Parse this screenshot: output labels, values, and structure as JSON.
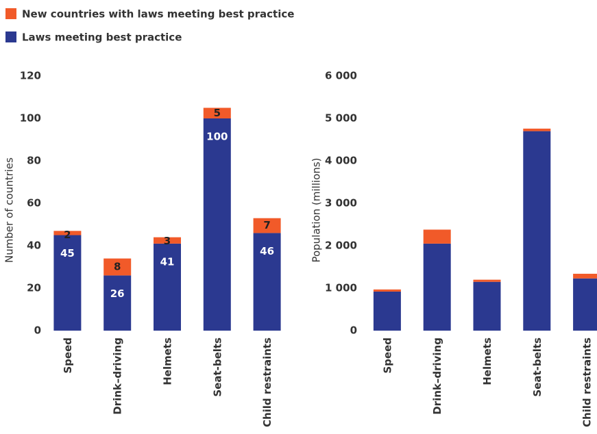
{
  "chart_data": [
    {
      "type": "bar",
      "stacked": true,
      "data_labels": true,
      "y_label": "Number of countries",
      "categories": [
        "Speed",
        "Drink–driving",
        "Helmets",
        "Seat-belts",
        "Child restraints"
      ],
      "series": [
        {
          "name": "Laws meeting best practice",
          "color": "#2b3990",
          "values": [
            45,
            26,
            41,
            100,
            46
          ]
        },
        {
          "name": "New countries with laws meeting best practice",
          "color": "#f15a29",
          "values": [
            2,
            8,
            3,
            5,
            7
          ]
        }
      ],
      "ylim": [
        0,
        120
      ],
      "yticks": [
        0,
        20,
        40,
        60,
        80,
        100,
        120
      ]
    },
    {
      "type": "bar",
      "stacked": true,
      "data_labels": false,
      "y_label": "Population (millions)",
      "categories": [
        "Speed",
        "Drink–driving",
        "Helmets",
        "Seat-belts",
        "Child restraints"
      ],
      "series": [
        {
          "color": "#2b3990",
          "values": [
            920,
            2050,
            1150,
            4700,
            1230
          ]
        },
        {
          "color": "#f15a29",
          "values": [
            50,
            330,
            50,
            60,
            110
          ]
        }
      ],
      "ylim": [
        0,
        6000
      ],
      "yticks": [
        0,
        {
          "value": 1000,
          "label": "1 000"
        },
        {
          "value": 2000,
          "label": "2 000"
        },
        {
          "value": 3000,
          "label": "3 000"
        },
        {
          "value": 4000,
          "label": "4 000"
        },
        {
          "value": 5000,
          "label": "5 000"
        },
        {
          "value": 6000,
          "label": "6 000"
        }
      ]
    }
  ]
}
